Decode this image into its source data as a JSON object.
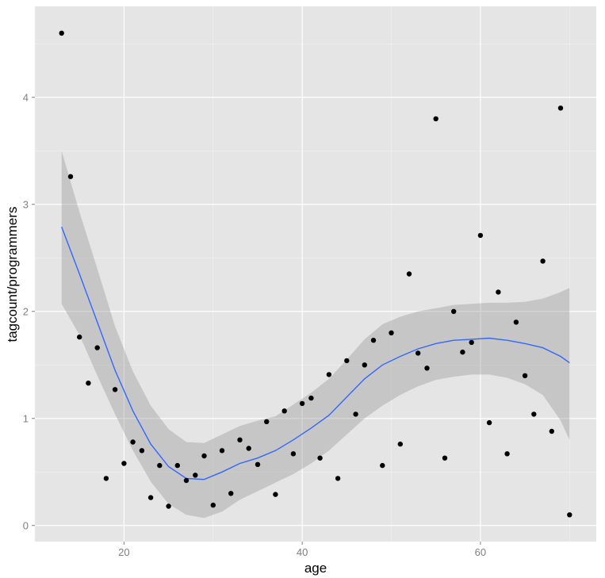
{
  "chart_data": {
    "type": "scatter",
    "title": "",
    "xlabel": "age",
    "ylabel": "tagcount/programmers",
    "xlim": [
      10,
      73
    ],
    "ylim": [
      -0.15,
      4.85
    ],
    "x_ticks": [
      20,
      40,
      60
    ],
    "y_ticks": [
      0,
      1,
      2,
      3,
      4
    ],
    "x_tick_labels": [
      "20",
      "40",
      "60"
    ],
    "y_tick_labels": [
      "0",
      "1",
      "2",
      "3",
      "4"
    ],
    "grid": true,
    "legend": "none",
    "colors": {
      "panel_background": "#e5e5e5",
      "grid_major": "#ffffff",
      "grid_minor": "#f2f2f2",
      "points": "#000000",
      "smooth_line": "#3366ff",
      "confidence_band": "#999999"
    },
    "series": [
      {
        "kind": "points",
        "x": [
          13,
          14,
          15,
          16,
          17,
          18,
          19,
          20,
          21,
          22,
          23,
          24,
          25,
          26,
          27,
          28,
          29,
          30,
          31,
          32,
          33,
          34,
          35,
          36,
          37,
          38,
          39,
          40,
          41,
          42,
          43,
          44,
          45,
          46,
          47,
          48,
          49,
          50,
          51,
          52,
          53,
          54,
          55,
          56,
          57,
          58,
          59,
          60,
          61,
          62,
          63,
          64,
          65,
          66,
          67,
          68,
          69,
          70
        ],
        "y": [
          4.6,
          3.26,
          1.76,
          1.33,
          1.66,
          0.44,
          1.27,
          0.58,
          0.78,
          0.7,
          0.26,
          0.56,
          0.18,
          0.56,
          0.42,
          0.47,
          0.65,
          0.19,
          0.7,
          0.3,
          0.8,
          0.72,
          0.57,
          0.97,
          0.29,
          1.07,
          0.67,
          1.14,
          1.19,
          0.63,
          1.41,
          0.44,
          1.54,
          1.04,
          1.5,
          1.73,
          0.56,
          1.8,
          0.76,
          2.35,
          1.61,
          1.47,
          3.8,
          0.63,
          2.0,
          1.62,
          1.71,
          2.71,
          0.96,
          2.18,
          0.67,
          1.9,
          1.4,
          1.04,
          2.47,
          0.88,
          3.9,
          0.1
        ]
      },
      {
        "kind": "smooth",
        "x": [
          13,
          15,
          17,
          19,
          21,
          23,
          25,
          27,
          29,
          31,
          33,
          35,
          37,
          39,
          41,
          43,
          45,
          47,
          49,
          51,
          53,
          55,
          57,
          59,
          61,
          63,
          65,
          67,
          69,
          70
        ],
        "y": [
          2.79,
          2.35,
          1.9,
          1.45,
          1.07,
          0.76,
          0.55,
          0.44,
          0.43,
          0.5,
          0.58,
          0.63,
          0.7,
          0.8,
          0.91,
          1.03,
          1.2,
          1.37,
          1.5,
          1.58,
          1.65,
          1.7,
          1.73,
          1.74,
          1.75,
          1.73,
          1.7,
          1.66,
          1.58,
          1.52
        ],
        "lower": [
          2.07,
          1.78,
          1.4,
          1.04,
          0.7,
          0.41,
          0.2,
          0.1,
          0.07,
          0.13,
          0.24,
          0.32,
          0.4,
          0.48,
          0.58,
          0.7,
          0.85,
          1.0,
          1.12,
          1.22,
          1.3,
          1.36,
          1.39,
          1.41,
          1.41,
          1.38,
          1.32,
          1.22,
          0.98,
          0.8
        ],
        "upper": [
          3.5,
          2.93,
          2.4,
          1.86,
          1.44,
          1.12,
          0.9,
          0.78,
          0.77,
          0.85,
          0.93,
          0.98,
          1.02,
          1.13,
          1.24,
          1.37,
          1.55,
          1.74,
          1.88,
          1.95,
          2.0,
          2.03,
          2.06,
          2.07,
          2.08,
          2.08,
          2.09,
          2.12,
          2.18,
          2.22
        ]
      }
    ]
  }
}
